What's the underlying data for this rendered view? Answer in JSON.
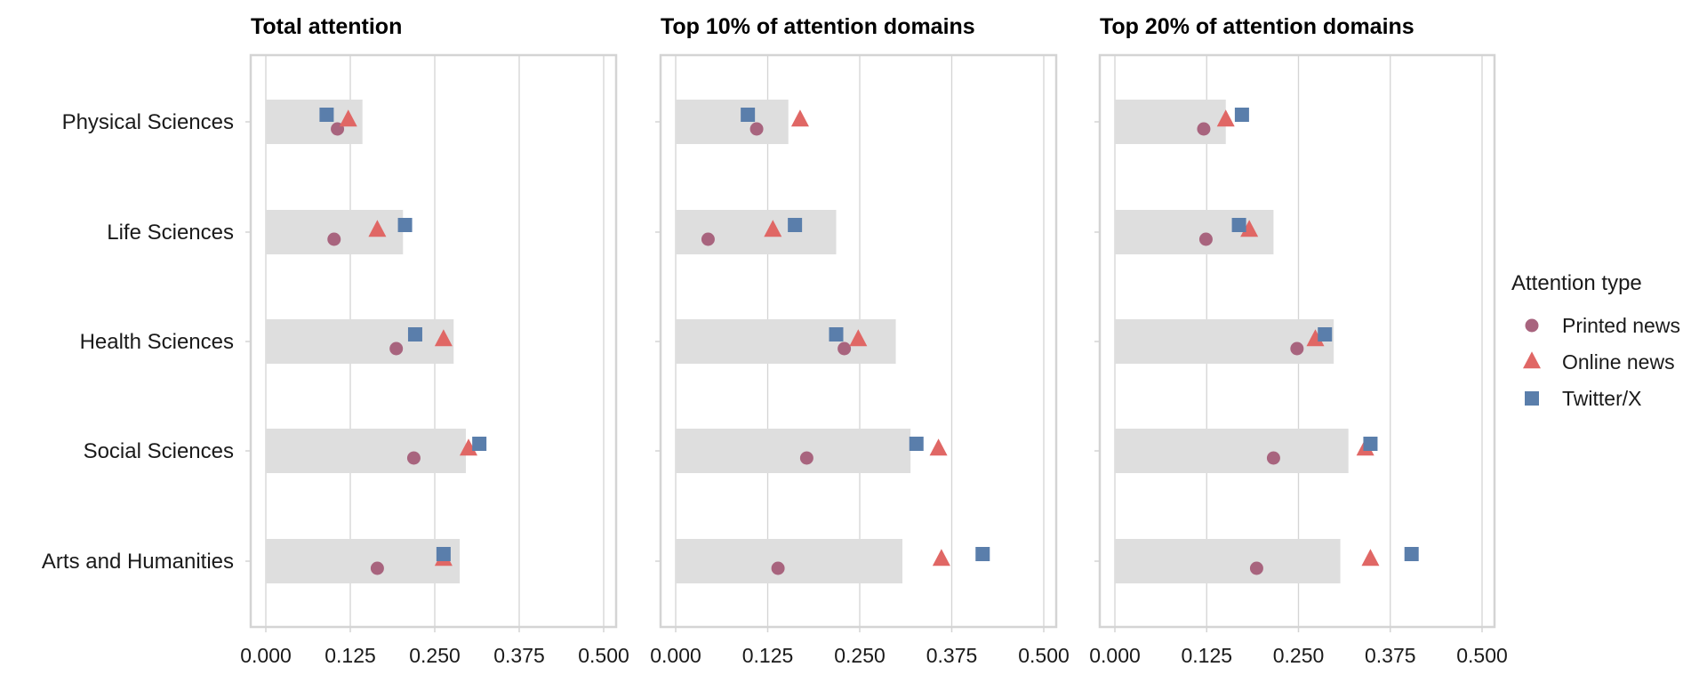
{
  "chart_data": {
    "type": "scatter",
    "categories": [
      "Physical Sciences",
      "Life Sciences",
      "Health Sciences",
      "Social Sciences",
      "Arts and Humanities"
    ],
    "xlim": [
      0,
      0.5
    ],
    "x_ticks": [
      "0.000",
      "0.125",
      "0.250",
      "0.375",
      "0.500"
    ],
    "x_tick_values": [
      0,
      0.125,
      0.25,
      0.375,
      0.5
    ],
    "grid": true,
    "legend": {
      "title": "Attention type",
      "position": "right",
      "entries": [
        {
          "name": "Printed news",
          "shape": "circle",
          "color": "#A8647E"
        },
        {
          "name": "Online news",
          "shape": "triangle",
          "color": "#E06765"
        },
        {
          "name": "Twitter/X",
          "shape": "square",
          "color": "#5A7EAB"
        }
      ]
    },
    "bar_color": "#DEDEDE",
    "panels": [
      {
        "title": "Total attention",
        "bar_values": [
          0.143,
          0.203,
          0.278,
          0.296,
          0.287
        ],
        "series": [
          {
            "name": "Printed news",
            "values": [
              0.106,
              0.101,
              0.193,
              0.219,
              0.165
            ]
          },
          {
            "name": "Online news",
            "values": [
              0.122,
              0.165,
              0.263,
              0.3,
              0.263
            ]
          },
          {
            "name": "Twitter/X",
            "values": [
              0.09,
              0.206,
              0.221,
              0.316,
              0.263
            ]
          }
        ]
      },
      {
        "title": "Top 10% of attention domains",
        "bar_values": [
          0.153,
          0.218,
          0.299,
          0.319,
          0.308
        ],
        "series": [
          {
            "name": "Printed news",
            "values": [
              0.11,
              0.044,
              0.229,
              0.178,
              0.139
            ]
          },
          {
            "name": "Online news",
            "values": [
              0.169,
              0.132,
              0.248,
              0.357,
              0.361
            ]
          },
          {
            "name": "Twitter/X",
            "values": [
              0.098,
              0.162,
              0.218,
              0.327,
              0.417
            ]
          }
        ]
      },
      {
        "title": "Top 20% of attention domains",
        "bar_values": [
          0.151,
          0.216,
          0.298,
          0.318,
          0.307
        ],
        "series": [
          {
            "name": "Printed news",
            "values": [
              0.121,
              0.124,
              0.248,
              0.216,
              0.193
            ]
          },
          {
            "name": "Online news",
            "values": [
              0.151,
              0.183,
              0.273,
              0.341,
              0.348
            ]
          },
          {
            "name": "Twitter/X",
            "values": [
              0.173,
              0.169,
              0.286,
              0.348,
              0.404
            ]
          }
        ]
      }
    ]
  }
}
